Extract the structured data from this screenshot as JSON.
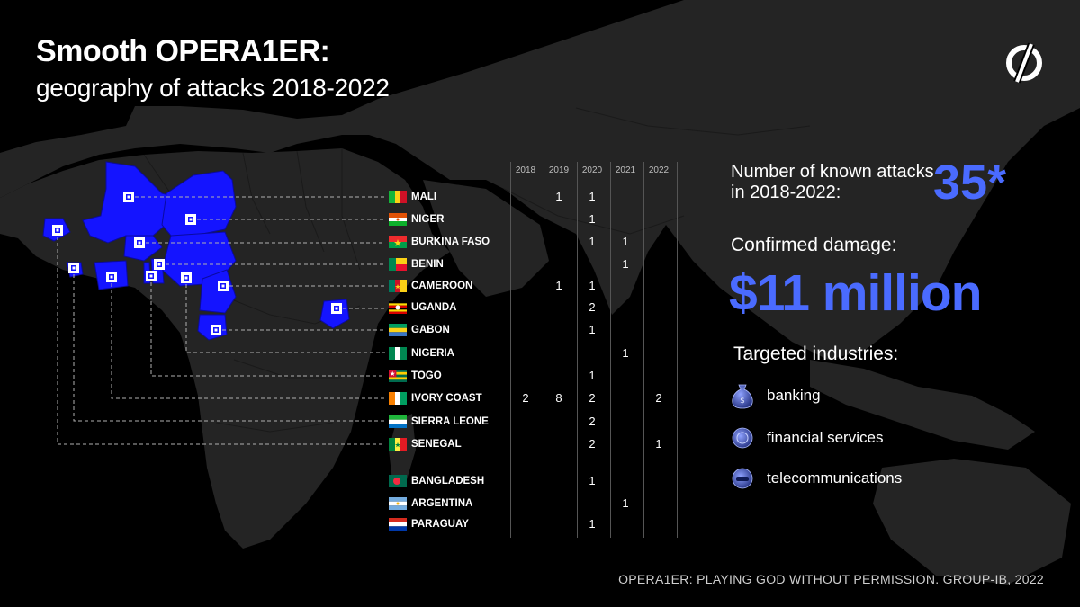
{
  "header": {
    "title": "Smooth OPERA1ER:",
    "subtitle": "geography of attacks 2018-2022"
  },
  "logo": {
    "icon": "group-ib-logo-icon"
  },
  "table": {
    "years": [
      "2018",
      "2019",
      "2020",
      "2021",
      "2022"
    ],
    "rows": [
      {
        "country": "MALI",
        "flag": "mali",
        "counts": [
          "",
          "1",
          "1",
          "",
          ""
        ]
      },
      {
        "country": "NIGER",
        "flag": "niger",
        "counts": [
          "",
          "",
          "1",
          "",
          ""
        ]
      },
      {
        "country": "BURKINA FASO",
        "flag": "burkina-faso",
        "counts": [
          "",
          "",
          "1",
          "1",
          ""
        ]
      },
      {
        "country": "BENIN",
        "flag": "benin",
        "counts": [
          "",
          "",
          "",
          "1",
          ""
        ]
      },
      {
        "country": "CAMEROON",
        "flag": "cameroon",
        "counts": [
          "",
          "1",
          "1",
          "",
          ""
        ]
      },
      {
        "country": "UGANDA",
        "flag": "uganda",
        "counts": [
          "",
          "",
          "2",
          "",
          ""
        ]
      },
      {
        "country": "GABON",
        "flag": "gabon",
        "counts": [
          "",
          "",
          "1",
          "",
          ""
        ]
      },
      {
        "country": "NIGERIA",
        "flag": "nigeria",
        "counts": [
          "",
          "",
          "",
          "1",
          ""
        ]
      },
      {
        "country": "TOGO",
        "flag": "togo",
        "counts": [
          "",
          "",
          "1",
          "",
          ""
        ]
      },
      {
        "country": "IVORY COAST",
        "flag": "ivory-coast",
        "counts": [
          "2",
          "8",
          "2",
          "",
          "2"
        ]
      },
      {
        "country": "SIERRA LEONE",
        "flag": "sierra-leone",
        "counts": [
          "",
          "",
          "2",
          "",
          ""
        ]
      },
      {
        "country": "SENEGAL",
        "flag": "senegal",
        "counts": [
          "",
          "",
          "2",
          "",
          "1"
        ]
      },
      {
        "country": "BANGLADESH",
        "flag": "bangladesh",
        "counts": [
          "",
          "",
          "1",
          "",
          ""
        ]
      },
      {
        "country": "ARGENTINA",
        "flag": "argentina",
        "counts": [
          "",
          "",
          "",
          "1",
          ""
        ]
      },
      {
        "country": "PARAGUAY",
        "flag": "paraguay",
        "counts": [
          "",
          "",
          "1",
          "",
          ""
        ]
      }
    ]
  },
  "stats": {
    "attacks_label": "Number of known attacks in 2018-2022:",
    "attacks_value": "35*",
    "damage_label": "Confirmed damage:",
    "damage_value": "$11 million"
  },
  "industries": {
    "title": "Targeted industries:",
    "items": [
      {
        "label": "banking",
        "icon": "money-bag-icon"
      },
      {
        "label": "financial services",
        "icon": "coin-icon"
      },
      {
        "label": "telecommunications",
        "icon": "phone-icon"
      }
    ]
  },
  "footer": {
    "source": "OPERA1ER: PLAYING GOD WITHOUT PERMISSION. GROUP-IB, 2022"
  },
  "colors": {
    "accent": "#4a6bff",
    "highlight": "#1414ff",
    "land": "#262626",
    "background": "#000000"
  }
}
